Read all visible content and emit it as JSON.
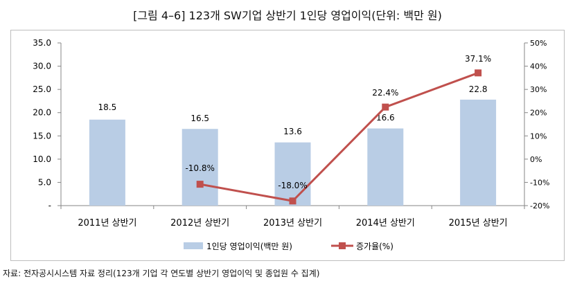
{
  "title": "[그림 4–6] 123개 SW기업 상반기 1인당 영업이익(단위: 백만 원)",
  "source": "자료: 전자공시시스템 자료 정리(123개 기업 각 연도별 상반기 영업이익 및 종업원 수 집계)",
  "colors": {
    "bar": "#b9cde5",
    "line": "#c0504d",
    "axis": "#868686",
    "frame": "#bdbdbd"
  },
  "chart_data": {
    "type": "bar+line",
    "categories": [
      "2011년 상반기",
      "2012년 상반기",
      "2013년 상반기",
      "2014년 상반기",
      "2015년 상반기"
    ],
    "series": [
      {
        "name": "1인당 영업이익(백만 원)",
        "type": "bar",
        "axis": "left",
        "values": [
          18.5,
          16.5,
          13.6,
          16.6,
          22.8
        ],
        "labels": [
          "18.5",
          "16.5",
          "13.6",
          "16.6",
          "22.8"
        ]
      },
      {
        "name": "증가율(%)",
        "type": "line",
        "axis": "right",
        "values": [
          null,
          -10.8,
          -18.0,
          22.4,
          37.1
        ],
        "labels": [
          "",
          "-10.8%",
          "-18.0%",
          "22.4%",
          "37.1%"
        ]
      }
    ],
    "left_axis": {
      "ylim": [
        0,
        35
      ],
      "ticks": [
        0,
        5,
        10,
        15,
        20,
        25,
        30,
        35
      ],
      "tick_labels": [
        "-",
        "5.0",
        "10.0",
        "15.0",
        "20.0",
        "25.0",
        "30.0",
        "35.0"
      ]
    },
    "right_axis": {
      "ylim": [
        -20,
        50
      ],
      "ticks": [
        -20,
        -10,
        0,
        10,
        20,
        30,
        40,
        50
      ],
      "tick_labels": [
        "-20%",
        "-10%",
        "0%",
        "10%",
        "20%",
        "30%",
        "40%",
        "50%"
      ]
    },
    "legend": {
      "position": "bottom",
      "items": [
        {
          "label": "1인당 영업이익(백만 원)",
          "kind": "bar"
        },
        {
          "label": "증가율(%)",
          "kind": "line"
        }
      ]
    },
    "grid": false
  }
}
